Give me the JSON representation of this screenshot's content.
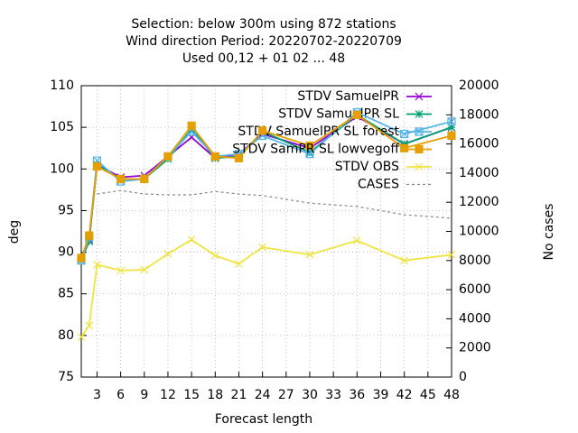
{
  "chart_data": {
    "type": "line",
    "title": [
      "Selection: below 300m using   872 stations",
      "Wind direction   Period: 20220702-20220709",
      "Used  00,12  + 01 02 ... 48"
    ],
    "xlabel": "Forecast length",
    "ylabel": "deg",
    "y2label": "No cases",
    "x": [
      1,
      2,
      3,
      6,
      9,
      12,
      15,
      18,
      21,
      24,
      30,
      36,
      42,
      48
    ],
    "xlim": [
      1,
      48
    ],
    "xticks": [
      3,
      6,
      9,
      12,
      15,
      18,
      21,
      24,
      27,
      30,
      33,
      36,
      39,
      42,
      45,
      48
    ],
    "ylim": [
      75,
      110
    ],
    "yticks": [
      75,
      80,
      85,
      90,
      95,
      100,
      105,
      110
    ],
    "y2lim": [
      0,
      20000
    ],
    "y2ticks": [
      0,
      2000,
      4000,
      6000,
      8000,
      10000,
      12000,
      14000,
      16000,
      18000,
      20000
    ],
    "grid": true,
    "legend": "top-right",
    "series": [
      {
        "name": "STDV SamuelPR",
        "color": "#9400d3",
        "values": [
          89,
          91.5,
          100.5,
          99,
          99.2,
          101.5,
          103.8,
          101.3,
          101.8,
          104.2,
          102.5,
          106.3,
          103,
          105
        ]
      },
      {
        "name": "STDV SamuelPR SL",
        "color": "#009e73",
        "values": [
          89,
          91.3,
          100.5,
          98.8,
          98.8,
          101.2,
          104.8,
          101.3,
          101.5,
          104.5,
          102,
          106.5,
          103,
          105
        ]
      },
      {
        "name": "STDV SamuelPR SL forest",
        "color": "#56b4e9",
        "values": [
          89,
          91.8,
          101,
          98.5,
          98.8,
          101.5,
          104.5,
          101.5,
          101.8,
          104,
          101.8,
          106.8,
          104.2,
          105.7
        ]
      },
      {
        "name": "STDV SamPR SL lowvegoff",
        "color": "#e69f00",
        "values": [
          89.3,
          92,
          100.3,
          98.8,
          98.8,
          101.5,
          105.2,
          101.5,
          101.3,
          104.6,
          102.8,
          106.5,
          102.5,
          104
        ]
      },
      {
        "name": "STDV OBS",
        "color": "#f0e442",
        "values": [
          79.8,
          81.2,
          88.5,
          87.8,
          87.9,
          89.8,
          91.5,
          89.6,
          88.6,
          90.6,
          89.7,
          91.4,
          89,
          89.7
        ]
      },
      {
        "name": "CASES",
        "color": "#888888",
        "axis": "y2",
        "dash": true,
        "values": [
          null,
          null,
          12570,
          12800,
          12570,
          12510,
          12510,
          12740,
          12570,
          12460,
          11940,
          11710,
          11140,
          10910
        ]
      }
    ]
  }
}
